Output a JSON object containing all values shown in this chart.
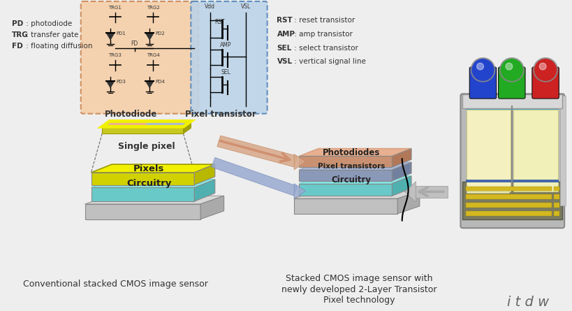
{
  "bg_color": "#eeeeee",
  "left_legend": [
    [
      "PD",
      " : photodiode"
    ],
    [
      "TRG",
      " : transfer gate"
    ],
    [
      "FD",
      " : floating diffusion"
    ]
  ],
  "right_legend": [
    [
      "RST",
      " : reset transistor"
    ],
    [
      "AMP",
      " : amp transistor"
    ],
    [
      "SEL",
      " : select transistor"
    ],
    [
      "VSL",
      " : vertical signal line"
    ]
  ],
  "photodiode_box_color": "#f5cfa8",
  "pixel_transistor_box_color": "#bcd4e8",
  "photodiode_label": "Photodiode",
  "pixel_transistor_label": "Pixel transistor",
  "single_pixel_label": "Single pixel",
  "pixels_label": "Pixels",
  "circuitry_label": "Circuitry",
  "photodiodes_label": "Photodiodes",
  "pixel_transistors_label": "Pixel transistors",
  "circuitry2_label": "Circuitry",
  "bottom_left_text": "Conventional stacked CMOS image sensor",
  "bottom_right_text1": "Stacked CMOS image sensor with",
  "bottom_right_text2": "newly developed 2-Layer Transistor",
  "bottom_right_text3": "Pixel technology",
  "watermark": "i t d w",
  "yellow_color": "#f0f000",
  "cyan_color": "#88e8e8",
  "orange_color": "#e8b090",
  "blue_color": "#aab8d8",
  "gray_color": "#c8c8c8",
  "text_color": "#333333"
}
